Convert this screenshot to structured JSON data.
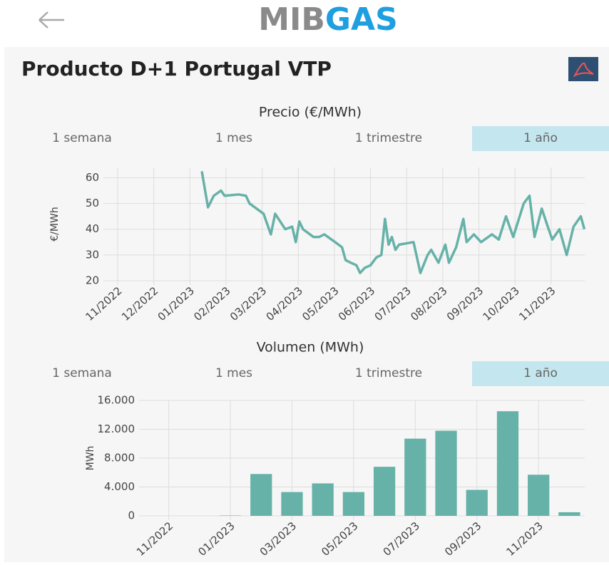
{
  "header": {
    "logo_left": "MIB",
    "logo_right": "GAS"
  },
  "title": "Producto D+1 Portugal VTP",
  "chart_data": [
    {
      "type": "line",
      "title": "Precio (€/MWh)",
      "ylabel": "€/MWh",
      "range_options": [
        "1 semana",
        "1 mes",
        "1 trimestre",
        "1 año"
      ],
      "selected_range": 3,
      "color": "#66b2a8",
      "grid": true,
      "xlim": [
        0,
        12.93
      ],
      "xticks": [
        {
          "value": 0,
          "label": "11/2022"
        },
        {
          "value": 1,
          "label": "12/2022"
        },
        {
          "value": 2,
          "label": "01/2023"
        },
        {
          "value": 3,
          "label": "02/2023"
        },
        {
          "value": 4,
          "label": "03/2023"
        },
        {
          "value": 5,
          "label": "04/2023"
        },
        {
          "value": 6,
          "label": "05/2023"
        },
        {
          "value": 7,
          "label": "06/2023"
        },
        {
          "value": 8,
          "label": "07/2023"
        },
        {
          "value": 9,
          "label": "08/2023"
        },
        {
          "value": 10,
          "label": "09/2023"
        },
        {
          "value": 11,
          "label": "10/2023"
        },
        {
          "value": 12,
          "label": "11/2023"
        }
      ],
      "ylim": [
        20,
        64
      ],
      "yticks": [
        20,
        30,
        40,
        50,
        60
      ],
      "x": [
        2.33,
        2.5,
        2.66,
        2.86,
        2.96,
        3.35,
        3.55,
        3.65,
        4.04,
        4.14,
        4.24,
        4.36,
        4.64,
        4.83,
        4.93,
        5.03,
        5.13,
        5.42,
        5.58,
        5.72,
        6.02,
        6.21,
        6.31,
        6.45,
        6.61,
        6.71,
        6.84,
        7.0,
        7.16,
        7.3,
        7.4,
        7.5,
        7.59,
        7.69,
        7.79,
        8.19,
        8.38,
        8.58,
        8.68,
        8.88,
        9.07,
        9.17,
        9.37,
        9.57,
        9.66,
        9.86,
        10.06,
        10.36,
        10.55,
        10.75,
        10.95,
        11.24,
        11.4,
        11.54,
        11.74,
        11.93,
        12.03,
        12.23,
        12.43,
        12.62,
        12.82,
        12.92
      ],
      "values": [
        62.5,
        48.5,
        53,
        55,
        53,
        53.5,
        53,
        50,
        46,
        42,
        38,
        46,
        40,
        41,
        35,
        43,
        40,
        37,
        37,
        38,
        35,
        33,
        28,
        27,
        26,
        23,
        25,
        26,
        29,
        30,
        44,
        34,
        37,
        32,
        34,
        35,
        23,
        30,
        32,
        27,
        34,
        27,
        33,
        44,
        35,
        38,
        35,
        38,
        36,
        45,
        37,
        50,
        53,
        37,
        48,
        40,
        36,
        40,
        30,
        41,
        45,
        40
      ]
    },
    {
      "type": "bar",
      "title": "Volumen (MWh)",
      "ylabel": "MWh",
      "range_options": [
        "1 semana",
        "1 mes",
        "1 trimestre",
        "1 año"
      ],
      "selected_range": 3,
      "color": "#66b2a8",
      "grid": true,
      "categories": [
        "11/2022",
        null,
        "01/2023",
        null,
        "03/2023",
        null,
        "05/2023",
        null,
        "07/2023",
        null,
        "09/2023",
        null,
        "11/2023",
        null
      ],
      "values": [
        0,
        0,
        50,
        5800,
        3300,
        4500,
        3300,
        6800,
        10700,
        11800,
        3600,
        14500,
        5700,
        500
      ],
      "ylim": [
        0,
        16000
      ],
      "yticks": [
        0,
        {
          "value": 4000,
          "label": "4.000"
        },
        {
          "value": 8000,
          "label": "8.000"
        },
        {
          "value": 12000,
          "label": "12.000"
        },
        {
          "value": 16000,
          "label": "16.000"
        }
      ]
    }
  ]
}
